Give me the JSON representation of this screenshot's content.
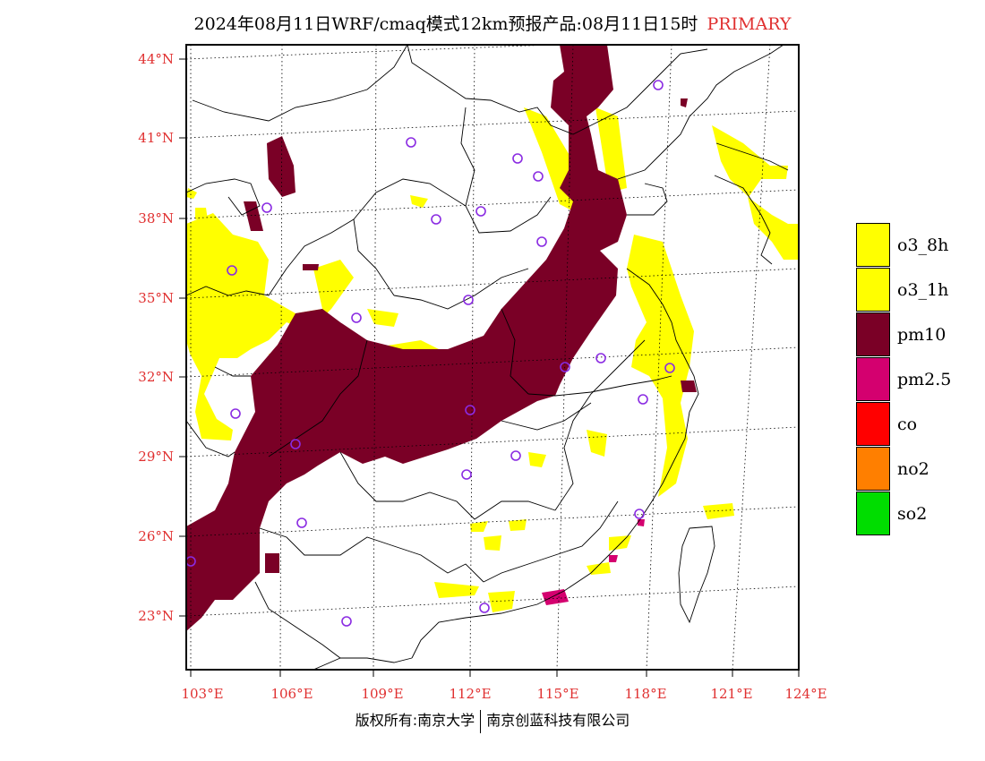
{
  "header": {
    "title": "2024年08月11日WRF/cmaq模式12km预报产品:08月11日15时",
    "tag": "PRIMARY"
  },
  "map": {
    "lat_labels": [
      "44°N",
      "41°N",
      "38°N",
      "35°N",
      "32°N",
      "29°N",
      "26°N",
      "23°N"
    ],
    "lon_labels": [
      "103°E",
      "106°E",
      "109°E",
      "112°E",
      "115°E",
      "118°E",
      "121°E",
      "124°E"
    ],
    "colors": {
      "frame": "#000000",
      "grid": "#000000",
      "tick_label": "#e03030",
      "station_marker": "#8a2be2"
    }
  },
  "legend": {
    "items": [
      {
        "label": "o3_8h",
        "color": "#ffff00"
      },
      {
        "label": "o3_1h",
        "color": "#ffff00"
      },
      {
        "label": "pm10",
        "color": "#7a0026"
      },
      {
        "label": "pm2.5",
        "color": "#d4006f"
      },
      {
        "label": "co",
        "color": "#ff0000"
      },
      {
        "label": "no2",
        "color": "#ff7f00"
      },
      {
        "label": "so2",
        "color": "#00dd00"
      }
    ]
  },
  "footer": {
    "left": "版权所有:南京大学",
    "right": "南京创蓝科技有限公司"
  }
}
